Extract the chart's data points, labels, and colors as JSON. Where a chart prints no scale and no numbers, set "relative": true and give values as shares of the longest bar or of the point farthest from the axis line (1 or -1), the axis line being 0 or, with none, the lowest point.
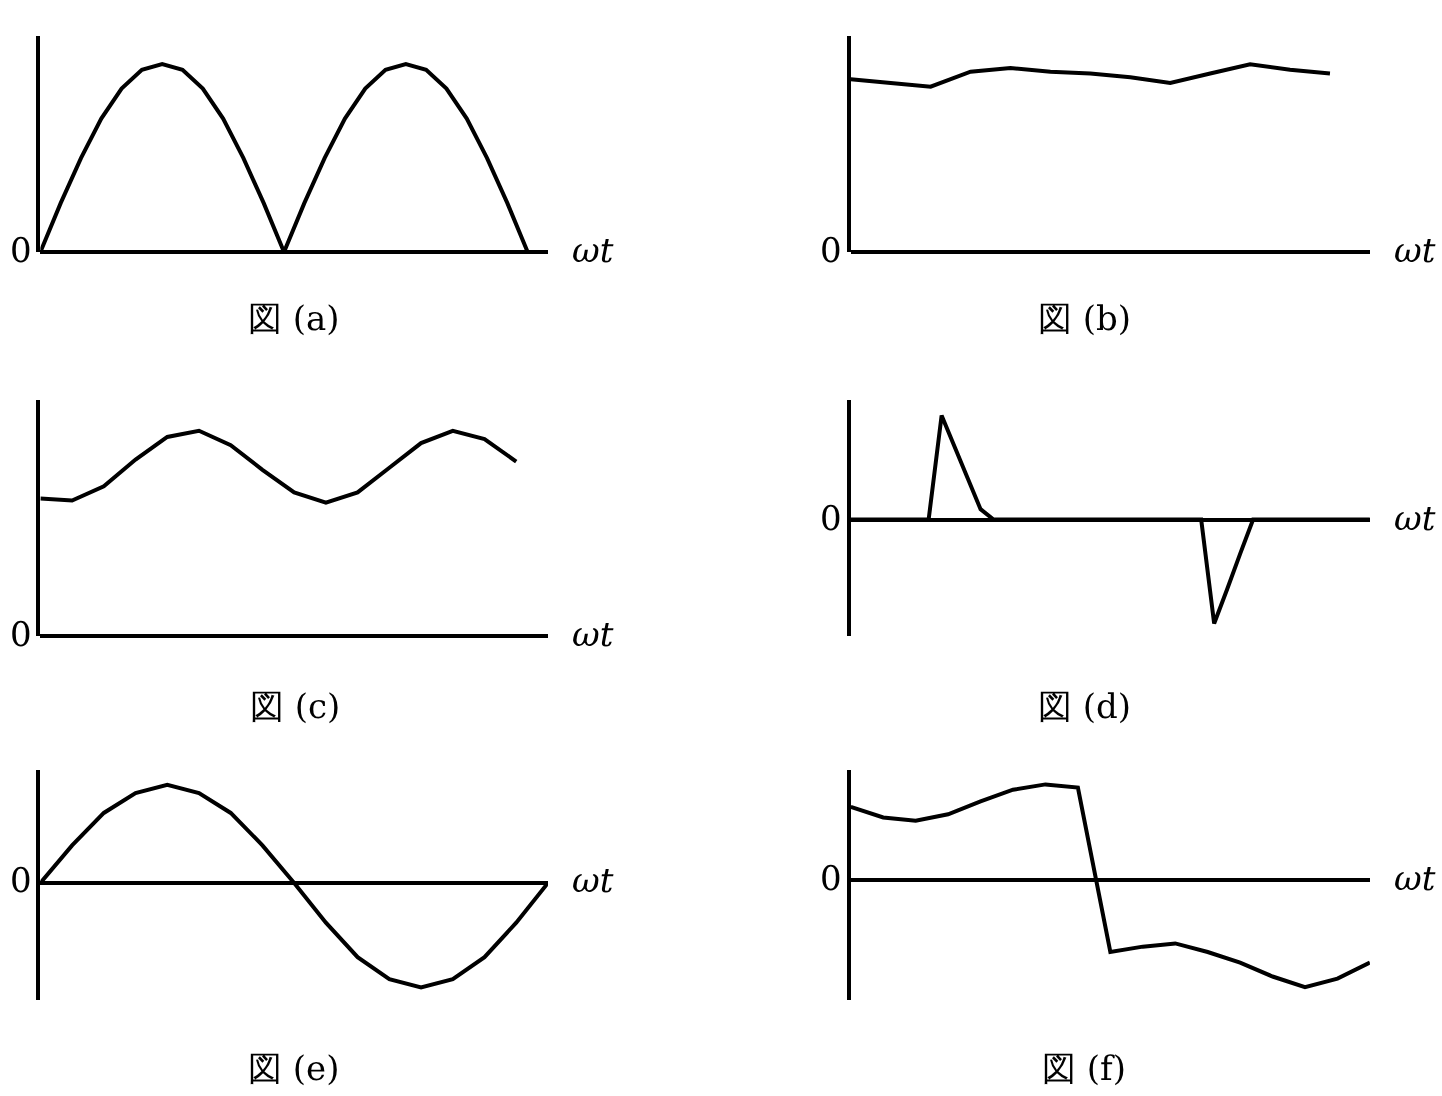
{
  "chart_data": [
    {
      "type": "line",
      "title": "図 (a)",
      "xlabel": "ωt",
      "relative": true,
      "color": "#000000",
      "marker": "none",
      "line_style": "solid",
      "legend": false,
      "annotations": [
        "0"
      ],
      "categories": [
        null,
        null,
        null,
        null,
        null,
        null,
        null,
        null,
        null,
        null,
        null,
        null,
        null,
        null,
        null,
        null,
        null,
        null,
        null,
        null,
        null,
        null,
        null,
        null,
        null,
        null
      ],
      "values": [
        0,
        0.26,
        0.5,
        0.71,
        0.87,
        0.97,
        1,
        0.97,
        0.87,
        0.71,
        0.5,
        0.26,
        0,
        0.26,
        0.5,
        0.71,
        0.87,
        0.97,
        1,
        0.97,
        0.87,
        0.71,
        0.5,
        0.26,
        0,
        null
      ]
    },
    {
      "type": "line",
      "title": "図 (b)",
      "xlabel": "ωt",
      "relative": true,
      "color": "#000000",
      "marker": "none",
      "line_style": "solid",
      "legend": false,
      "annotations": [
        "0"
      ],
      "categories": [
        null,
        null,
        null,
        null,
        null,
        null,
        null,
        null,
        null,
        null,
        null,
        null,
        null,
        null
      ],
      "values": [
        0.92,
        0.9,
        0.88,
        0.96,
        0.98,
        0.96,
        0.95,
        0.93,
        0.9,
        0.95,
        1,
        0.97,
        0.95,
        null
      ]
    },
    {
      "type": "line",
      "title": "図 (c)",
      "xlabel": "ωt",
      "relative": true,
      "color": "#000000",
      "marker": "none",
      "line_style": "solid",
      "legend": false,
      "annotations": [
        "0"
      ],
      "categories": [
        null,
        null,
        null,
        null,
        null,
        null,
        null,
        null,
        null,
        null,
        null,
        null,
        null,
        null,
        null,
        null,
        null
      ],
      "values": [
        0.67,
        0.66,
        0.73,
        0.86,
        0.97,
        1,
        0.93,
        0.81,
        0.7,
        0.65,
        0.7,
        0.82,
        0.94,
        1,
        0.96,
        0.85,
        null
      ]
    },
    {
      "type": "line",
      "title": "図 (d)",
      "xlabel": "ωt",
      "relative": true,
      "color": "#000000",
      "marker": "none",
      "line_style": "solid",
      "legend": false,
      "annotations": [
        "0"
      ],
      "categories": [
        null,
        null,
        null,
        null,
        null,
        null,
        null,
        null,
        null,
        null,
        null,
        null,
        null,
        null,
        null,
        null,
        null,
        null,
        null,
        null,
        null,
        null,
        null,
        null,
        null,
        null,
        null,
        null,
        null,
        null,
        null,
        null,
        null,
        null,
        null,
        null,
        null,
        null,
        null,
        null,
        null
      ],
      "values": [
        0,
        0,
        0,
        0,
        0,
        0,
        0,
        1,
        0.7,
        0.4,
        0.1,
        0,
        0,
        0,
        0,
        0,
        0,
        0,
        0,
        0,
        0,
        0,
        0,
        0,
        0,
        0,
        0,
        0,
        -1,
        -0.67,
        -0.33,
        0,
        0,
        0,
        0,
        0,
        0,
        0,
        0,
        0,
        0
      ]
    },
    {
      "type": "line",
      "title": "図 (e)",
      "xlabel": "ωt",
      "relative": true,
      "color": "#000000",
      "marker": "none",
      "line_style": "solid",
      "legend": false,
      "annotations": [
        "0"
      ],
      "categories": [
        null,
        null,
        null,
        null,
        null,
        null,
        null,
        null,
        null,
        null,
        null,
        null,
        null,
        null,
        null,
        null,
        null
      ],
      "values": [
        0,
        0.36,
        0.67,
        0.86,
        0.94,
        0.86,
        0.67,
        0.36,
        0,
        -0.38,
        -0.71,
        -0.92,
        -1,
        -0.92,
        -0.71,
        -0.38,
        0
      ]
    },
    {
      "type": "line",
      "title": "図 (f)",
      "xlabel": "ωt",
      "relative": true,
      "color": "#000000",
      "marker": "none",
      "line_style": "solid",
      "legend": false,
      "annotations": [
        "0"
      ],
      "categories": [
        null,
        null,
        null,
        null,
        null,
        null,
        null,
        null,
        null,
        null,
        null,
        null,
        null,
        null,
        null,
        null,
        null
      ],
      "values": [
        0.69,
        0.59,
        0.56,
        0.62,
        0.74,
        0.85,
        0.9,
        0.87,
        -0.67,
        -0.62,
        -0.59,
        -0.67,
        -0.77,
        -0.9,
        -1,
        -0.92,
        -0.77
      ]
    }
  ]
}
